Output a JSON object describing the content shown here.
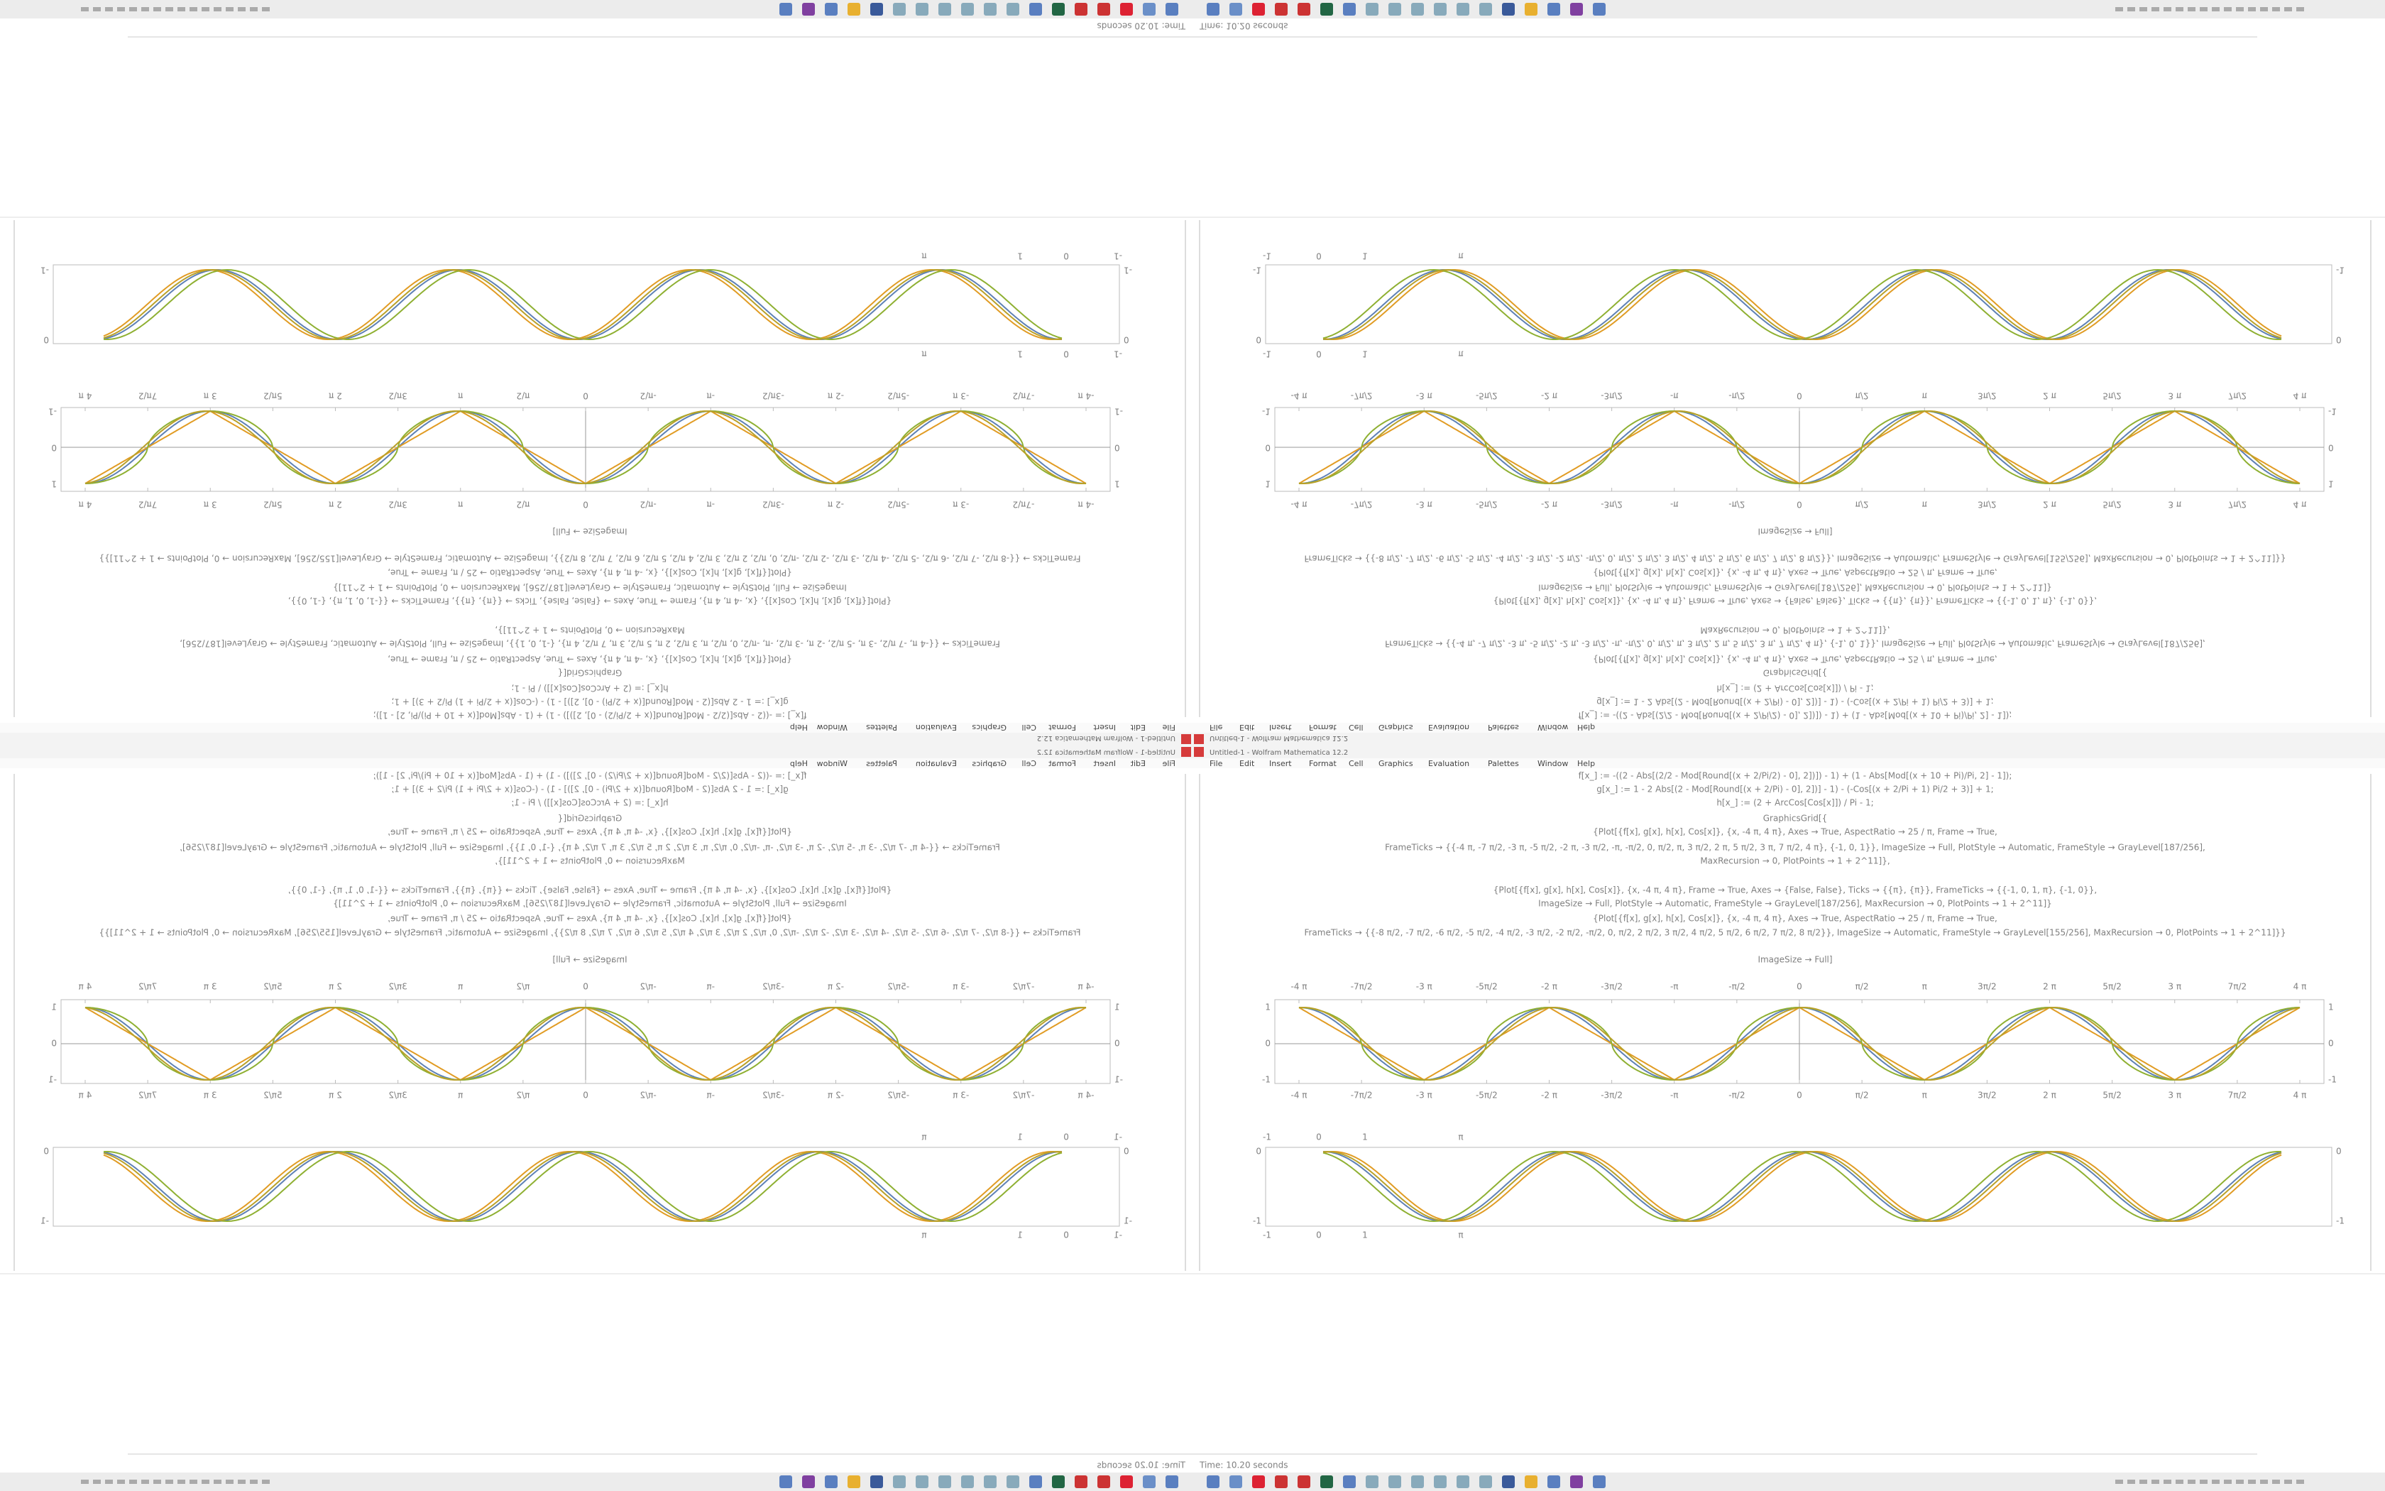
{
  "window": {
    "title": "Untitled-1 - Wolfram Mathematica 12.2",
    "status": "Time: 10.20 seconds"
  },
  "menu": [
    "File",
    "Edit",
    "Insert",
    "Format",
    "Cell",
    "Graphics",
    "Evaluation",
    "Palettes",
    "Window",
    "Help"
  ],
  "code": [
    "f[x_] := -((2 - Abs[(2/2 - Mod[Round[(x + 2/Pi/2) - 0], 2])]) - 1) + (1 - Abs[Mod[(x + 10 + Pi)/Pi, 2] - 1]);",
    "g[x_] := 1 - 2 Abs[(2 - Mod[Round[(x + 2/Pi) - 0], 2])] - 1) - (-Cos[(x + 2/Pi + 1) Pi/2 + 3)] + 1;",
    "h[x_] := (2 + ArcCos[Cos[x]]) / Pi - 1;",
    "GraphicsGrid[{",
    "{Plot[{f[x], g[x], h[x], Cos[x]}, {x, -4 π, 4 π}, Axes → True, AspectRatio → 25 / π, Frame → True,",
    "FrameTicks → {{-4 π, -7 π/2, -3 π, -5 π/2, -2 π, -3 π/2, -π, -π/2, 0, π/2, π, 3 π/2, 2 π, 5 π/2, 3 π, 7 π/2, 4 π}, {-1, 0, 1}}, ImageSize → Full, PlotStyle → Automatic, FrameStyle → GrayLevel[187/256],",
    "MaxRecursion → 0, PlotPoints → 1 + 2^11]},",
    "{Plot[{f[x], g[x], h[x], Cos[x]}, {x, -4 π, 4 π}, Frame → True, Axes → {False, False}, Ticks → {{π}, {π}}, FrameTicks → {{-1, 0, 1, π}, {-1, 0}},",
    "ImageSize → Full, PlotStyle → Automatic, FrameStyle → GrayLevel[187/256], MaxRecursion → 0, PlotPoints → 1 + 2^11]}",
    "{Plot[{f[x], g[x], h[x], Cos[x]}, {x, -4 π, 4 π}, Axes → True, AspectRatio → 25 / π, Frame → True,",
    "FrameTicks → {{-8 π/2, -7 π/2, -6 π/2, -5 π/2, -4 π/2, -3 π/2, -2 π/2, -π/2, 0, π/2, 2 π/2, 3 π/2, 4 π/2, 5 π/2, 6 π/2, 7 π/2, 8 π/2}}, ImageSize → Automatic, FrameStyle → GrayLevel[155/256], MaxRecursion → 0, PlotPoints → 1 + 2^11]}}",
    "ImageSize → Full]"
  ],
  "plot1": {
    "xticks": [
      "-4 π",
      "-7π/2",
      "-3 π",
      "-5π/2",
      "-2 π",
      "-3π/2",
      "-π",
      "-π/2",
      "0",
      "π/2",
      "π",
      "3π/2",
      "2 π",
      "5π/2",
      "3 π",
      "7π/2",
      "4 π"
    ],
    "yticks": [
      "1",
      "0",
      "-1"
    ]
  },
  "plot2": {
    "xticks": [
      "-1",
      "0",
      "1",
      "π"
    ],
    "yticks": [
      "0",
      "-1"
    ]
  }
}
